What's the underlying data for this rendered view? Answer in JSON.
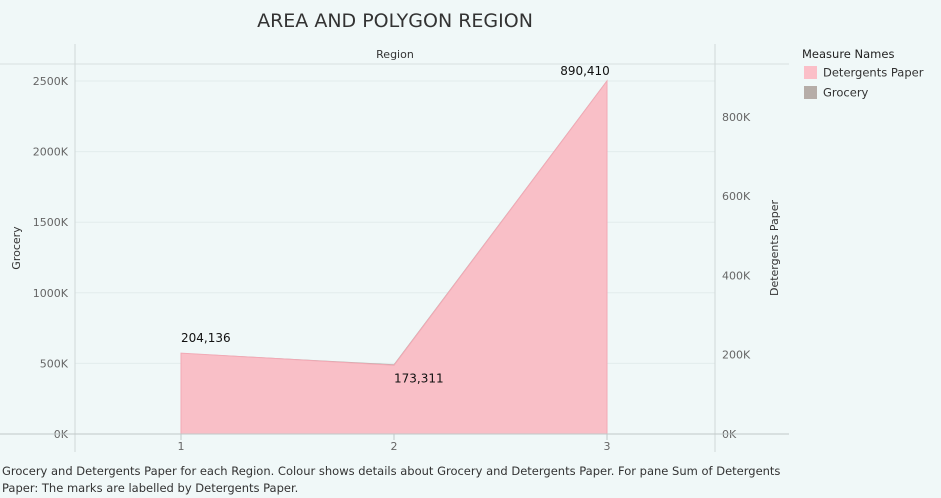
{
  "chart_data": {
    "type": "area",
    "title": "AREA AND POLYGON REGION",
    "column_header": "Region",
    "categories": [
      "1",
      "2",
      "3"
    ],
    "y_left": {
      "label": "Grocery",
      "ylim": [
        0,
        2500000
      ],
      "ticks": [
        "0K",
        "500K",
        "1000K",
        "1500K",
        "2000K",
        "2500K"
      ]
    },
    "y_right": {
      "label": "Detergents Paper",
      "ylim": [
        0,
        890410
      ],
      "ticks": [
        "0K",
        "200K",
        "400K",
        "600K",
        "800K"
      ]
    },
    "series": [
      {
        "name": "Grocery",
        "axis": "left",
        "color": "#b6ada8",
        "values": [
          570000,
          490000,
          2500000
        ]
      },
      {
        "name": "Detergents Paper",
        "axis": "right",
        "color": "#fbbfc8",
        "values": [
          204136,
          173311,
          890410
        ],
        "labels": [
          "204,136",
          "173,311",
          "890,410"
        ]
      }
    ],
    "legend": {
      "title": "Measure Names",
      "position": "top-right",
      "items": [
        {
          "name": "Detergents Paper",
          "color": "#fbbfc8"
        },
        {
          "name": "Grocery",
          "color": "#b6ada8"
        }
      ]
    },
    "grid": true
  },
  "caption": "Grocery and Detergents Paper for each Region.  Colour shows details about Grocery and Detergents Paper.  For pane Sum of Detergents Paper:  The marks are labelled by Detergents Paper."
}
